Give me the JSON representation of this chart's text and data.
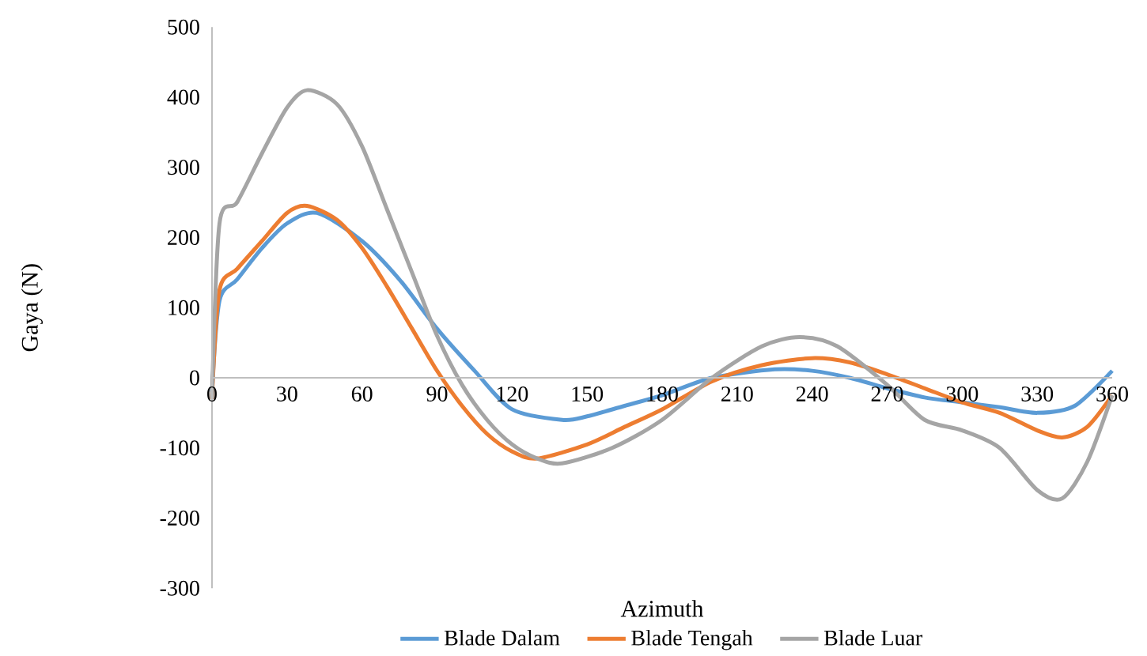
{
  "chart_data": {
    "type": "line",
    "xlabel": "Azimuth",
    "ylabel": "Gaya (N)",
    "xlim": [
      0,
      360
    ],
    "ylim": [
      -300,
      500
    ],
    "xticks": [
      0,
      30,
      60,
      90,
      120,
      150,
      180,
      210,
      240,
      270,
      300,
      330,
      360
    ],
    "yticks": [
      -300,
      -200,
      -100,
      0,
      100,
      200,
      300,
      400,
      500
    ],
    "legend": "bottom",
    "series": [
      {
        "name": "Blade Dalam",
        "color": "#5b9bd5",
        "x": [
          0,
          3,
          10,
          20,
          30,
          42,
          60,
          75,
          90,
          105,
          120,
          140,
          150,
          165,
          180,
          200,
          225,
          240,
          255,
          270,
          285,
          300,
          315,
          330,
          345,
          360
        ],
        "values": [
          -20,
          110,
          140,
          185,
          220,
          235,
          195,
          140,
          70,
          10,
          -45,
          -60,
          -55,
          -40,
          -25,
          0,
          12,
          10,
          0,
          -15,
          -28,
          -35,
          -42,
          -50,
          -40,
          10
        ]
      },
      {
        "name": "Blade Tengah",
        "color": "#ed7d31",
        "x": [
          0,
          3,
          10,
          20,
          30,
          38,
          50,
          60,
          70,
          80,
          90,
          100,
          110,
          120,
          130,
          150,
          165,
          180,
          200,
          220,
          240,
          255,
          270,
          285,
          300,
          315,
          330,
          340,
          350,
          360
        ],
        "values": [
          -30,
          125,
          155,
          195,
          235,
          245,
          225,
          185,
          130,
          70,
          10,
          -40,
          -80,
          -105,
          -115,
          -95,
          -70,
          -45,
          -5,
          18,
          28,
          22,
          5,
          -15,
          -35,
          -50,
          -75,
          -85,
          -70,
          -25
        ]
      },
      {
        "name": "Blade Luar",
        "color": "#a5a5a5",
        "x": [
          0,
          3,
          10,
          20,
          30,
          38,
          50,
          60,
          70,
          80,
          90,
          100,
          110,
          120,
          130,
          140,
          160,
          180,
          200,
          220,
          235,
          250,
          270,
          285,
          300,
          315,
          330,
          340,
          350,
          360
        ],
        "values": [
          -30,
          220,
          250,
          320,
          385,
          410,
          390,
          330,
          240,
          150,
          60,
          -10,
          -60,
          -95,
          -115,
          -122,
          -100,
          -60,
          0,
          45,
          58,
          45,
          -10,
          -60,
          -75,
          -100,
          -160,
          -172,
          -120,
          -25
        ]
      }
    ]
  }
}
